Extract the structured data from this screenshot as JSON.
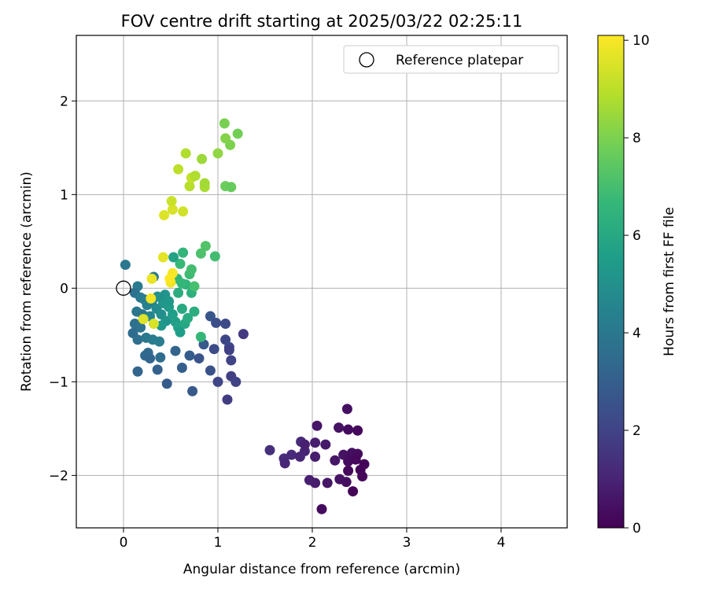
{
  "chart_data": {
    "type": "scatter",
    "title": "FOV centre drift starting at 2025/03/22 02:25:11",
    "xlabel": "Angular distance from reference (arcmin)",
    "ylabel": "Rotation from reference (arcmin)",
    "xlim": [
      -0.5,
      4.7
    ],
    "ylim": [
      -2.56,
      2.7
    ],
    "x_ticks": [
      0,
      1,
      2,
      3,
      4
    ],
    "x_tick_labels": [
      "0",
      "1",
      "2",
      "3",
      "4"
    ],
    "y_ticks": [
      -2,
      -1,
      0,
      1,
      2
    ],
    "y_tick_labels": [
      "−2",
      "−1",
      "0",
      "1",
      "2"
    ],
    "grid": true,
    "legend": {
      "placement": "top-right",
      "entries": [
        {
          "label": "Reference platepar",
          "marker": "open-circle",
          "x": 0,
          "y": 0
        }
      ]
    },
    "colorbar": {
      "label": "Hours from first FF file",
      "range": [
        0,
        10.1
      ],
      "ticks": [
        0,
        2,
        4,
        6,
        8,
        10
      ],
      "tick_labels": [
        "0",
        "2",
        "4",
        "6",
        "8",
        "10"
      ],
      "colormap": "viridis"
    },
    "series": [
      {
        "values_note": "each point: [x, y, hours]",
        "points": [
          [
            2.37,
            -1.29,
            0.4
          ],
          [
            2.05,
            -1.47,
            0.6
          ],
          [
            2.28,
            -1.49,
            0.5
          ],
          [
            2.38,
            -1.51,
            0.3
          ],
          [
            2.48,
            -1.52,
            0.2
          ],
          [
            1.55,
            -1.73,
            1.4
          ],
          [
            1.88,
            -1.64,
            1.2
          ],
          [
            1.7,
            -1.82,
            1.3
          ],
          [
            1.71,
            -1.87,
            1.1
          ],
          [
            1.78,
            -1.78,
            1.2
          ],
          [
            1.92,
            -1.74,
            1.0
          ],
          [
            1.87,
            -1.8,
            1.1
          ],
          [
            1.92,
            -1.67,
            0.9
          ],
          [
            2.03,
            -1.65,
            0.8
          ],
          [
            2.14,
            -1.67,
            0.7
          ],
          [
            2.03,
            -1.8,
            0.8
          ],
          [
            2.24,
            -1.84,
            0.6
          ],
          [
            2.33,
            -1.78,
            0.5
          ],
          [
            2.42,
            -1.76,
            0.4
          ],
          [
            2.48,
            -1.77,
            0.3
          ],
          [
            2.38,
            -1.85,
            0.3
          ],
          [
            2.46,
            -1.83,
            0.2
          ],
          [
            2.55,
            -1.88,
            0.1
          ],
          [
            2.38,
            -1.95,
            0.2
          ],
          [
            2.51,
            -1.94,
            0.1
          ],
          [
            2.53,
            -2.01,
            0.2
          ],
          [
            2.29,
            -2.04,
            0.5
          ],
          [
            2.36,
            -2.07,
            0.4
          ],
          [
            1.97,
            -2.05,
            0.9
          ],
          [
            2.03,
            -2.08,
            0.8
          ],
          [
            2.16,
            -2.08,
            0.6
          ],
          [
            2.43,
            -2.17,
            0.1
          ],
          [
            2.1,
            -2.36,
            0.3
          ],
          [
            0.02,
            0.25,
            4.0
          ],
          [
            0.15,
            0.02,
            4.2
          ],
          [
            0.12,
            -0.05,
            3.8
          ],
          [
            0.18,
            -0.1,
            4.1
          ],
          [
            0.22,
            -0.12,
            4.3
          ],
          [
            0.25,
            -0.18,
            4.4
          ],
          [
            0.3,
            -0.15,
            4.5
          ],
          [
            0.14,
            -0.25,
            4.0
          ],
          [
            0.2,
            -0.28,
            3.9
          ],
          [
            0.28,
            -0.3,
            4.6
          ],
          [
            0.35,
            -0.22,
            4.8
          ],
          [
            0.4,
            -0.28,
            5.0
          ],
          [
            0.45,
            -0.35,
            5.2
          ],
          [
            0.12,
            -0.38,
            3.7
          ],
          [
            0.18,
            -0.42,
            3.8
          ],
          [
            0.1,
            -0.48,
            3.6
          ],
          [
            0.15,
            -0.55,
            3.7
          ],
          [
            0.24,
            -0.53,
            4.0
          ],
          [
            0.31,
            -0.55,
            4.2
          ],
          [
            0.38,
            -0.57,
            4.3
          ],
          [
            0.26,
            -0.69,
            3.5
          ],
          [
            0.23,
            -0.72,
            3.4
          ],
          [
            0.28,
            -0.75,
            3.3
          ],
          [
            0.39,
            -0.74,
            3.6
          ],
          [
            0.15,
            -0.89,
            3.2
          ],
          [
            0.36,
            -0.87,
            3.1
          ],
          [
            0.62,
            -0.85,
            3.0
          ],
          [
            0.46,
            -1.02,
            2.9
          ],
          [
            0.73,
            -1.1,
            2.8
          ],
          [
            0.32,
            0.12,
            4.2
          ],
          [
            0.55,
            -0.67,
            3.2
          ],
          [
            0.7,
            -0.72,
            2.9
          ],
          [
            0.8,
            -0.75,
            2.6
          ],
          [
            0.85,
            -0.6,
            2.8
          ],
          [
            0.92,
            -0.88,
            2.5
          ],
          [
            0.96,
            -0.65,
            2.3
          ],
          [
            0.92,
            -0.3,
            2.7
          ],
          [
            0.98,
            -0.37,
            2.4
          ],
          [
            1.08,
            -0.38,
            2.2
          ],
          [
            1.08,
            -0.55,
            2.1
          ],
          [
            1.12,
            -0.63,
            2.2
          ],
          [
            1.14,
            -0.77,
            2.0
          ],
          [
            1.0,
            -1.0,
            2.1
          ],
          [
            1.14,
            -0.94,
            1.9
          ],
          [
            1.19,
            -1.0,
            2.0
          ],
          [
            1.1,
            -1.19,
            1.8
          ],
          [
            1.27,
            -0.49,
            1.7
          ],
          [
            1.12,
            -0.66,
            1.9
          ],
          [
            0.44,
            -0.07,
            5.2
          ],
          [
            0.48,
            -0.2,
            5.5
          ],
          [
            0.52,
            -0.28,
            5.6
          ],
          [
            0.55,
            -0.36,
            5.7
          ],
          [
            0.58,
            -0.42,
            5.8
          ],
          [
            0.6,
            -0.47,
            5.6
          ],
          [
            0.65,
            -0.38,
            6.0
          ],
          [
            0.62,
            -0.22,
            6.1
          ],
          [
            0.68,
            -0.32,
            6.2
          ],
          [
            0.72,
            -0.05,
            6.4
          ],
          [
            0.66,
            0.04,
            6.5
          ],
          [
            0.57,
            0.1,
            6.6
          ],
          [
            0.6,
            0.26,
            6.8
          ],
          [
            0.63,
            0.38,
            6.6
          ],
          [
            0.53,
            0.33,
            5.8
          ],
          [
            0.7,
            0.15,
            6.9
          ],
          [
            0.72,
            0.2,
            7.0
          ],
          [
            0.75,
            0.02,
            7.1
          ],
          [
            0.75,
            -0.25,
            6.3
          ],
          [
            0.82,
            -0.52,
            6.7
          ],
          [
            0.82,
            0.37,
            7.2
          ],
          [
            0.87,
            0.45,
            7.3
          ],
          [
            0.97,
            0.34,
            7.0
          ],
          [
            0.48,
            -0.14,
            5.4
          ],
          [
            0.42,
            -0.16,
            5.3
          ],
          [
            0.36,
            -0.09,
            5.1
          ],
          [
            0.4,
            -0.4,
            5.4
          ],
          [
            0.62,
            0.05,
            6.7
          ],
          [
            0.58,
            -0.05,
            6.3
          ],
          [
            0.21,
            -0.33,
            9.6
          ],
          [
            0.29,
            -0.11,
            9.9
          ],
          [
            0.32,
            -0.38,
            9.5
          ],
          [
            0.3,
            0.1,
            9.8
          ],
          [
            0.42,
            0.33,
            9.7
          ],
          [
            0.5,
            0.06,
            9.9
          ],
          [
            0.52,
            0.16,
            10.0
          ],
          [
            0.49,
            0.1,
            10.1
          ],
          [
            0.43,
            0.78,
            9.6
          ],
          [
            0.52,
            0.84,
            9.5
          ],
          [
            0.63,
            0.82,
            9.4
          ],
          [
            0.51,
            0.93,
            9.3
          ],
          [
            0.58,
            1.27,
            9.1
          ],
          [
            0.7,
            1.09,
            9.0
          ],
          [
            0.72,
            1.18,
            9.2
          ],
          [
            0.76,
            1.2,
            8.9
          ],
          [
            0.86,
            1.08,
            8.8
          ],
          [
            0.86,
            1.12,
            8.7
          ],
          [
            0.66,
            1.44,
            8.9
          ],
          [
            0.83,
            1.38,
            8.6
          ],
          [
            1.0,
            1.44,
            8.4
          ],
          [
            1.07,
            1.76,
            8.0
          ],
          [
            1.08,
            1.6,
            8.2
          ],
          [
            1.13,
            1.53,
            8.1
          ],
          [
            1.21,
            1.65,
            7.9
          ],
          [
            1.08,
            1.09,
            7.8
          ],
          [
            1.14,
            1.08,
            7.7
          ]
        ]
      }
    ]
  }
}
